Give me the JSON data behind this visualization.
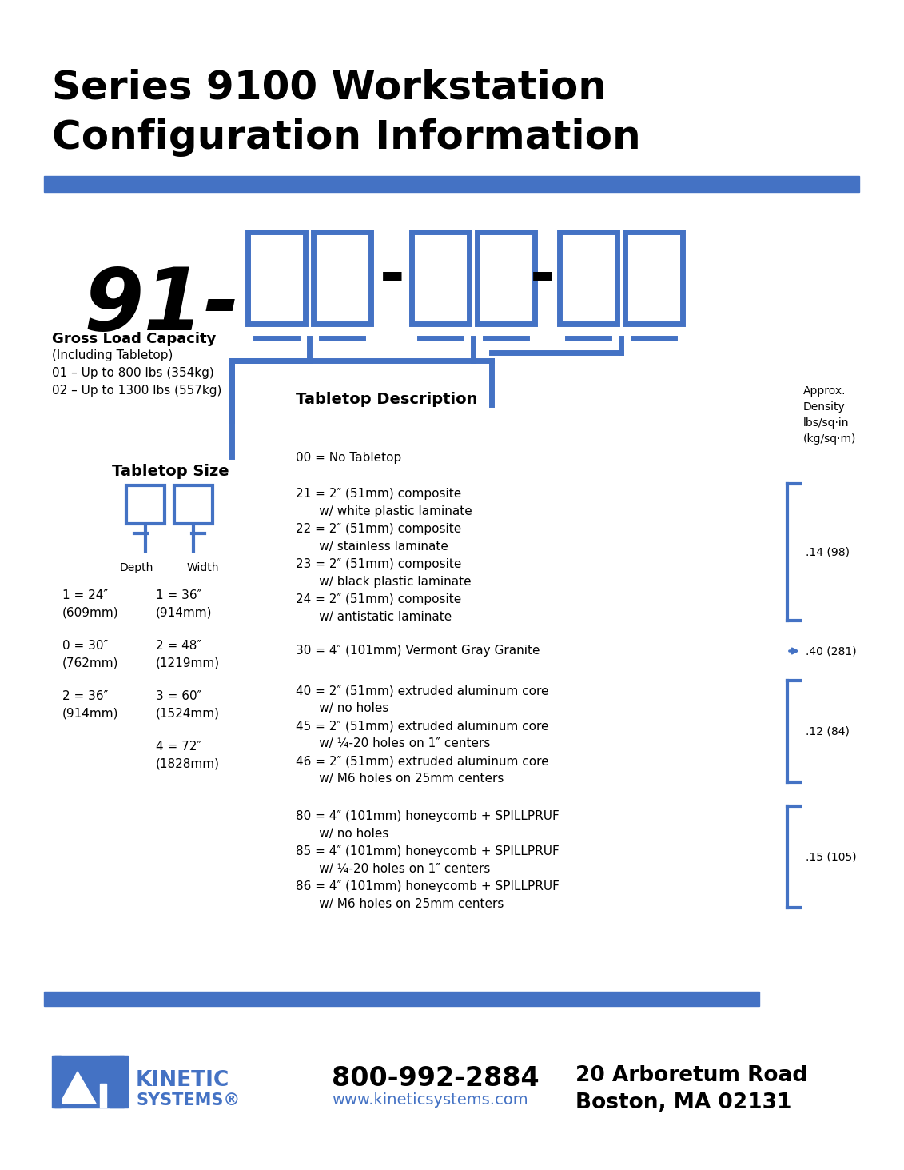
{
  "title_line1": "Series 9100 Workstation",
  "title_line2": "Configuration Information",
  "blue_color": "#4472C4",
  "black_color": "#000000",
  "bg_color": "#FFFFFF",
  "part_number": "91-",
  "phone": "800-992-2884",
  "website": "www.kineticsystems.com",
  "address_line1": "20 Arboretum Road",
  "address_line2": "Boston, MA 02131"
}
